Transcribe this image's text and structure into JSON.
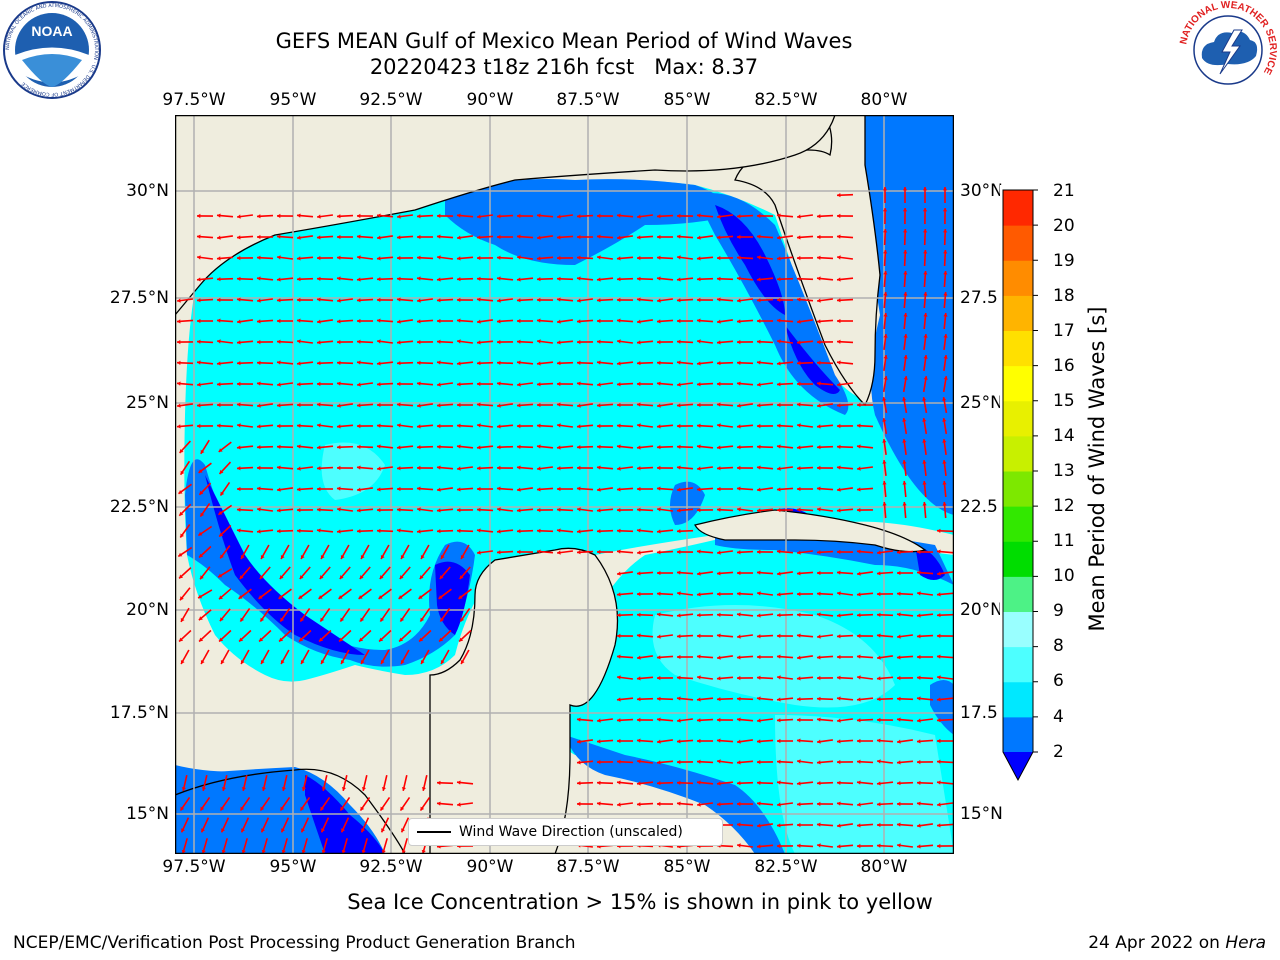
{
  "title": {
    "line1": "GEFS MEAN Gulf of Mexico Mean Period of Wind Waves",
    "line2": "20220423 t18z 216h fcst   Max: 8.37"
  },
  "map": {
    "lon_ticks": [
      "97.5°W",
      "95°W",
      "92.5°W",
      "90°W",
      "87.5°W",
      "85°W",
      "82.5°W",
      "80°W"
    ],
    "lat_ticks_left": [
      "30°N",
      "27.5°N",
      "25°N",
      "22.5°N",
      "20°N",
      "17.5°N",
      "15°N"
    ],
    "lat_ticks_right": [
      "30°N",
      "27.5",
      "25°N",
      "22.5",
      "20°N",
      "17.5",
      "15°N"
    ],
    "extent": {
      "lon_min": -98,
      "lon_max": -78.2,
      "lat_min": 14.0,
      "lat_max": 31.7
    },
    "land_color": "#efedde",
    "grid_color": "#b0b0b0",
    "arrow_color": "#ff0000",
    "legend_label": "Wind Wave Direction (unscaled)"
  },
  "colorbar": {
    "label": "Mean Period of Wind Waves [s]",
    "ticks": [
      "2",
      "4",
      "6",
      "8",
      "9",
      "10",
      "11",
      "12",
      "13",
      "14",
      "15",
      "16",
      "17",
      "18",
      "19",
      "20",
      "21"
    ],
    "colors": [
      "#0078ff",
      "#00e8ff",
      "#4dffff",
      "#99ffff",
      "#4df286",
      "#00dd00",
      "#32e800",
      "#7de800",
      "#c8f000",
      "#e8f000",
      "#ffff00",
      "#ffe000",
      "#ffb400",
      "#ff8c00",
      "#ff5a00",
      "#ff2800"
    ],
    "extend_color": "#0000ff"
  },
  "logos": {
    "noaa_text": "NOAA",
    "noaa_ring": "NATIONAL OCEANIC AND ATMOSPHERIC ADMINISTRATION · U.S. DEPARTMENT OF COMMERCE",
    "nws_ring": "NATIONAL WEATHER SERVICE"
  },
  "notes": {
    "sea_ice": "Sea Ice Concentration > 15% is shown in pink to yellow",
    "footer_left": "NCEP/EMC/Verification Post Processing Product Generation Branch",
    "footer_right_date": "24 Apr 2022 on ",
    "footer_right_host": "Hera"
  }
}
